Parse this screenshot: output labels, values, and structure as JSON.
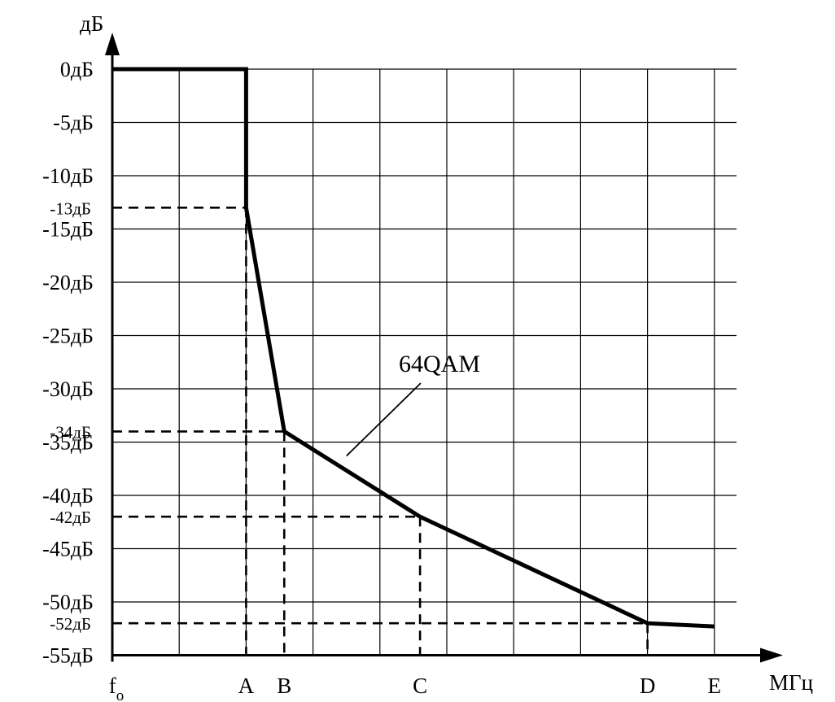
{
  "chart_data": {
    "type": "line",
    "ylabel": "дБ",
    "xlabel": "МГц",
    "ylim": [
      -55,
      0
    ],
    "y_ticks": [
      {
        "value": 0,
        "label": "0дБ"
      },
      {
        "value": -5,
        "label": "-5дБ"
      },
      {
        "value": -10,
        "label": "-10дБ"
      },
      {
        "value": -13,
        "label": "-13дБ",
        "small": true
      },
      {
        "value": -15,
        "label": "-15дБ"
      },
      {
        "value": -20,
        "label": "-20дБ"
      },
      {
        "value": -25,
        "label": "-25дБ"
      },
      {
        "value": -30,
        "label": "-30дБ"
      },
      {
        "value": -34,
        "label": "-34дБ",
        "small": true
      },
      {
        "value": -35,
        "label": "-35дБ"
      },
      {
        "value": -40,
        "label": "-40дБ"
      },
      {
        "value": -42,
        "label": "-42дБ",
        "small": true
      },
      {
        "value": -45,
        "label": "-45дБ"
      },
      {
        "value": -50,
        "label": "-50дБ"
      },
      {
        "value": -52,
        "label": "-52дБ",
        "small": true
      },
      {
        "value": -55,
        "label": "-55дБ"
      }
    ],
    "x_labels": [
      {
        "x": 0,
        "label": "f",
        "sub": "o"
      },
      {
        "x": 2,
        "label": "A"
      },
      {
        "x": 2.57,
        "label": "B"
      },
      {
        "x": 4.6,
        "label": "C"
      },
      {
        "x": 8,
        "label": "D"
      },
      {
        "x": 9,
        "label": "E"
      }
    ],
    "xlim": [
      0,
      9.2
    ],
    "series": [
      {
        "name": "64QAM",
        "points": [
          [
            0,
            0
          ],
          [
            2,
            0
          ],
          [
            2,
            -13
          ],
          [
            2.57,
            -34
          ],
          [
            4.6,
            -42
          ],
          [
            8,
            -52
          ],
          [
            9,
            -52.3
          ]
        ]
      }
    ],
    "guides": [
      {
        "x": 2,
        "y": -13
      },
      {
        "x": 2.57,
        "y": -34
      },
      {
        "x": 4.6,
        "y": -42
      },
      {
        "x": 8,
        "y": -52
      }
    ],
    "annotation": {
      "text": "64QAM",
      "x": 3.6,
      "y": -29,
      "pointer_x": 3.5,
      "pointer_y": -36.3
    },
    "grid": true
  }
}
